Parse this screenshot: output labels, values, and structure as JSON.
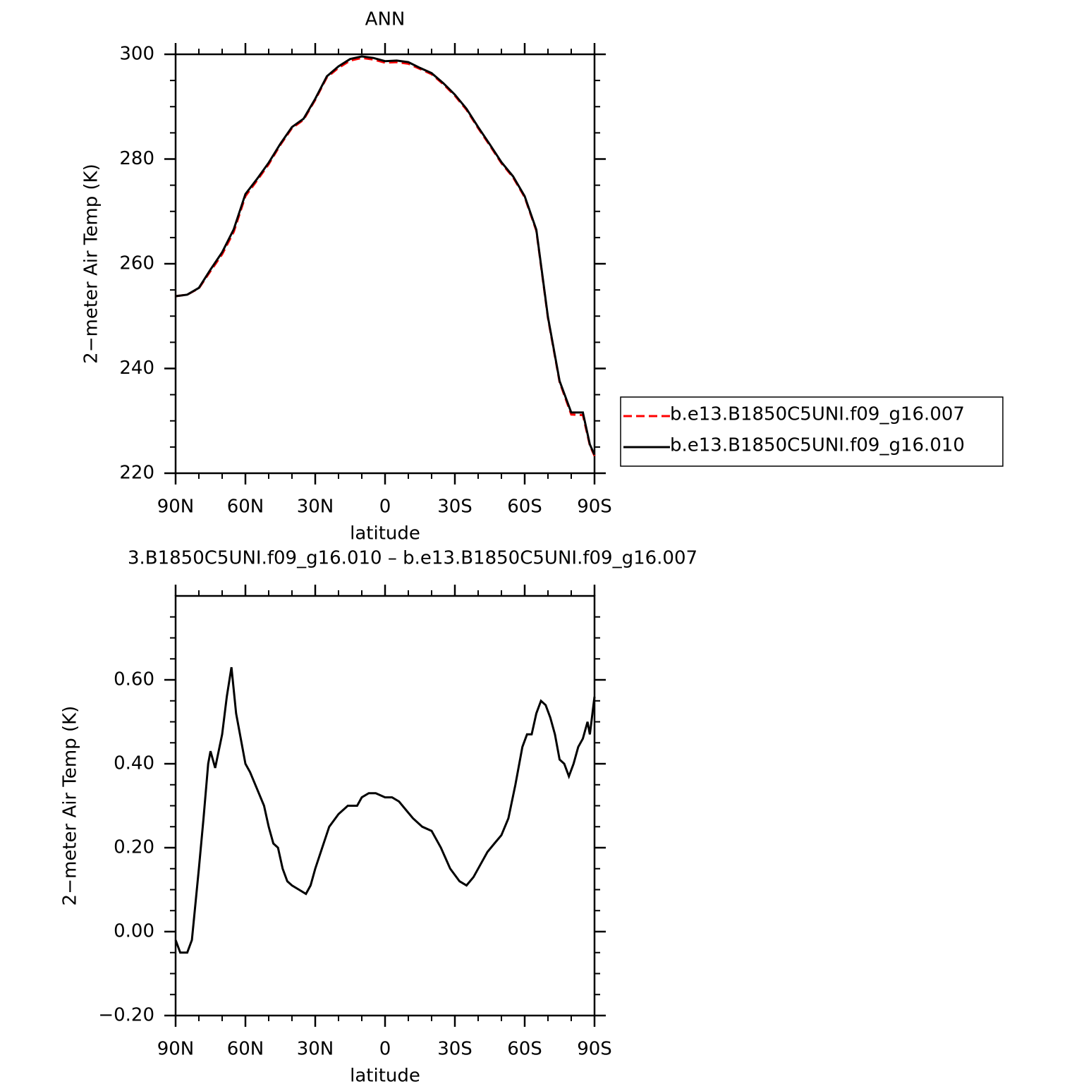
{
  "chart_data": [
    {
      "type": "line",
      "title": "ANN",
      "xlabel": "latitude",
      "ylabel": "2−meter Air Temp (K)",
      "x": [
        90,
        85,
        80,
        75,
        70,
        65,
        60,
        55,
        50,
        45,
        40,
        35,
        30,
        25,
        20,
        15,
        10,
        5,
        0,
        -5,
        -10,
        -15,
        -20,
        -25,
        -30,
        -35,
        -40,
        -45,
        -50,
        -55,
        -60,
        -65,
        -68,
        -70,
        -75,
        -80,
        -85,
        -88,
        -90
      ],
      "series": [
        {
          "name": "b.e13.B1850C5UNI.f09_g16.007",
          "color": "#ff0000",
          "linestyle": "dashed",
          "values": [
            253.8,
            254.1,
            255.3,
            258.6,
            261.8,
            266.1,
            272.9,
            275.9,
            279.0,
            282.7,
            285.9,
            287.5,
            291.3,
            295.6,
            297.4,
            298.8,
            299.3,
            299.0,
            298.4,
            298.5,
            298.2,
            297.2,
            296.2,
            294.3,
            292.1,
            289.4,
            285.9,
            282.6,
            279.2,
            276.5,
            272.7,
            266.3,
            256.3,
            249.6,
            237.4,
            231.2,
            231.1,
            225.3,
            223.3
          ]
        },
        {
          "name": "b.e13.B1850C5UNI.f09_g16.010",
          "color": "#000000",
          "linestyle": "solid",
          "values": [
            253.8,
            254.1,
            255.4,
            258.9,
            262.2,
            266.6,
            273.3,
            276.2,
            279.3,
            282.9,
            286.1,
            287.7,
            291.5,
            295.8,
            297.7,
            299.1,
            299.6,
            299.3,
            298.7,
            298.8,
            298.5,
            297.4,
            296.4,
            294.5,
            292.3,
            289.6,
            286.1,
            282.8,
            279.4,
            276.7,
            272.9,
            266.5,
            256.5,
            249.8,
            237.6,
            231.6,
            231.6,
            225.5,
            223.5
          ]
        }
      ],
      "xlim": [
        90,
        -90
      ],
      "xticks": [
        {
          "value": 90,
          "label": "90N"
        },
        {
          "value": 60,
          "label": "60N"
        },
        {
          "value": 30,
          "label": "30N"
        },
        0,
        {
          "value": -30,
          "label": "30S"
        },
        {
          "value": -60,
          "label": "60S"
        },
        {
          "value": -90,
          "label": "90S"
        }
      ],
      "xminorticks": [
        80,
        70,
        50,
        40,
        20,
        10,
        -10,
        -20,
        -40,
        -50,
        -70,
        -80
      ],
      "ylim": [
        220,
        300
      ],
      "yticks": [
        220,
        240,
        260,
        280,
        300
      ],
      "yminorticks": [
        225,
        230,
        235,
        245,
        250,
        255,
        265,
        270,
        275,
        285,
        290,
        295
      ],
      "legend": "right"
    },
    {
      "type": "line",
      "title": "3.B1850C5UNI.f09_g16.010 – b.e13.B1850C5UNI.f09_g16.007",
      "xlabel": "latitude",
      "ylabel": "2−meter Air Temp (K)",
      "x": [
        90,
        88,
        85,
        83,
        80,
        78,
        76,
        75,
        73,
        70,
        68,
        66,
        64,
        62,
        60,
        58,
        55,
        52,
        50,
        48,
        46,
        44,
        42,
        40,
        37,
        34,
        32,
        30,
        27,
        24,
        20,
        16,
        12,
        10,
        7,
        4,
        0,
        -3,
        -6,
        -9,
        -12,
        -16,
        -20,
        -24,
        -28,
        -32,
        -35,
        -38,
        -41,
        -44,
        -47,
        -50,
        -53,
        -56,
        -59,
        -61,
        -63,
        -65,
        -67,
        -69,
        -71,
        -73,
        -75,
        -77,
        -79,
        -81,
        -83,
        -85,
        -87,
        -88,
        -90
      ],
      "series": [
        {
          "color": "#000000",
          "linestyle": "solid",
          "values": [
            -0.02,
            -0.05,
            -0.05,
            -0.02,
            0.15,
            0.27,
            0.4,
            0.43,
            0.39,
            0.47,
            0.56,
            0.63,
            0.52,
            0.46,
            0.4,
            0.38,
            0.34,
            0.3,
            0.25,
            0.21,
            0.2,
            0.15,
            0.12,
            0.11,
            0.1,
            0.09,
            0.11,
            0.15,
            0.2,
            0.25,
            0.28,
            0.3,
            0.3,
            0.32,
            0.33,
            0.33,
            0.32,
            0.32,
            0.31,
            0.29,
            0.27,
            0.25,
            0.24,
            0.2,
            0.15,
            0.12,
            0.11,
            0.13,
            0.16,
            0.19,
            0.21,
            0.23,
            0.27,
            0.35,
            0.44,
            0.47,
            0.47,
            0.52,
            0.55,
            0.54,
            0.51,
            0.47,
            0.41,
            0.4,
            0.37,
            0.4,
            0.44,
            0.46,
            0.5,
            0.47,
            0.56
          ]
        }
      ],
      "xlim": [
        90,
        -90
      ],
      "xticks": [
        {
          "value": 90,
          "label": "90N"
        },
        {
          "value": 60,
          "label": "60N"
        },
        {
          "value": 30,
          "label": "30N"
        },
        0,
        {
          "value": -30,
          "label": "30S"
        },
        {
          "value": -60,
          "label": "60S"
        },
        {
          "value": -90,
          "label": "90S"
        }
      ],
      "xminorticks": [
        80,
        70,
        50,
        40,
        20,
        10,
        -10,
        -20,
        -40,
        -50,
        -70,
        -80
      ],
      "ylim": [
        -0.2,
        0.8
      ],
      "yticks": [
        {
          "value": -0.2,
          "label": "−0.20"
        },
        {
          "value": 0,
          "label": "0.00"
        },
        {
          "value": 0.2,
          "label": "0.20"
        },
        {
          "value": 0.4,
          "label": "0.40"
        },
        {
          "value": 0.6,
          "label": "0.60"
        }
      ],
      "yminorticks": [
        -0.15,
        -0.1,
        -0.05,
        0.05,
        0.1,
        0.15,
        0.25,
        0.3,
        0.35,
        0.45,
        0.5,
        0.55,
        0.65,
        0.7,
        0.75
      ]
    }
  ]
}
